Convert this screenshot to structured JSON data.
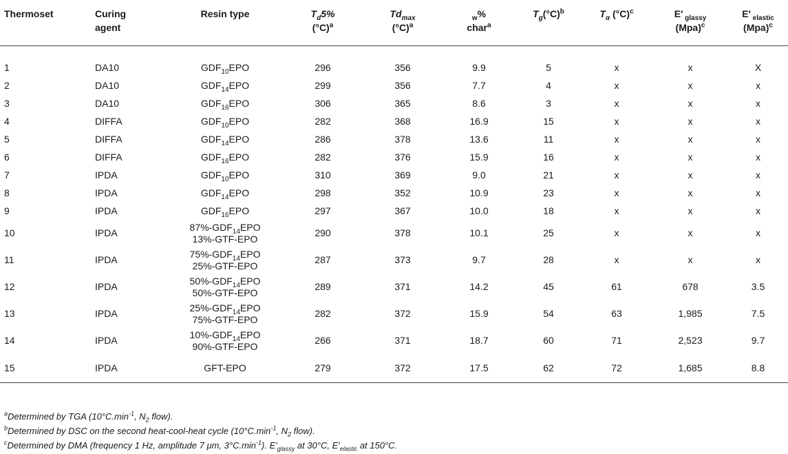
{
  "table": {
    "headers": {
      "thermoset": "Thermoset",
      "curing_agent_l1": "Curing",
      "curing_agent_l2": "agent",
      "resin_type": "Resin type",
      "td5_main": "T",
      "td5_sub": "d",
      "td5_rest": "5%",
      "td5_l2": "(°C)",
      "td5_sup": "a",
      "tdmax_main": "Td",
      "tdmax_sub": "max",
      "tdmax_l2": "(°C)",
      "tdmax_sup": "a",
      "wchar_w": "w",
      "wchar_pct": "%",
      "wchar_l2": "char",
      "wchar_sup": "a",
      "tg_main": "T",
      "tg_sub": "g",
      "tg_rest": "(°C)",
      "tg_sup": "b",
      "talpha_main": "T",
      "talpha_sub": "α",
      "talpha_rest": " (°C)",
      "talpha_sup": "c",
      "eglassy_main": "E′",
      "eglassy_sub": " glassy",
      "eglassy_l2": "(Mpa)",
      "eglassy_sup": "c",
      "eelastic_main": "E′",
      "eelastic_sub": " elastic",
      "eelastic_l2": "(Mpa)",
      "eelastic_sup": "c"
    },
    "rows": [
      {
        "id": "1",
        "agent": "DA10",
        "resin": {
          "l1_pre": "GDF",
          "l1_sub": "10",
          "l1_post": "EPO",
          "l2": ""
        },
        "td5": "296",
        "tdmax": "356",
        "wchar": "9.9",
        "tg": "5",
        "talpha": "x",
        "eglassy": "x",
        "eelastic": "X"
      },
      {
        "id": "2",
        "agent": "DA10",
        "resin": {
          "l1_pre": "GDF",
          "l1_sub": "14",
          "l1_post": "EPO",
          "l2": ""
        },
        "td5": "299",
        "tdmax": "356",
        "wchar": "7.7",
        "tg": "4",
        "talpha": "x",
        "eglassy": "x",
        "eelastic": "x"
      },
      {
        "id": "3",
        "agent": "DA10",
        "resin": {
          "l1_pre": "GDF",
          "l1_sub": "16",
          "l1_post": "EPO",
          "l2": ""
        },
        "td5": "306",
        "tdmax": "365",
        "wchar": "8.6",
        "tg": "3",
        "talpha": "x",
        "eglassy": "x",
        "eelastic": "x"
      },
      {
        "id": "4",
        "agent": "DIFFA",
        "resin": {
          "l1_pre": "GDF",
          "l1_sub": "10",
          "l1_post": "EPO",
          "l2": ""
        },
        "td5": "282",
        "tdmax": "368",
        "wchar": "16.9",
        "tg": "15",
        "talpha": "x",
        "eglassy": "x",
        "eelastic": "x"
      },
      {
        "id": "5",
        "agent": "DIFFA",
        "resin": {
          "l1_pre": "GDF",
          "l1_sub": "14",
          "l1_post": "EPO",
          "l2": ""
        },
        "td5": "286",
        "tdmax": "378",
        "wchar": "13.6",
        "tg": "11",
        "talpha": "x",
        "eglassy": "x",
        "eelastic": "x"
      },
      {
        "id": "6",
        "agent": "DIFFA",
        "resin": {
          "l1_pre": "GDF",
          "l1_sub": "16",
          "l1_post": "EPO",
          "l2": ""
        },
        "td5": "282",
        "tdmax": "376",
        "wchar": "15.9",
        "tg": "16",
        "talpha": "x",
        "eglassy": "x",
        "eelastic": "x"
      },
      {
        "id": "7",
        "agent": "IPDA",
        "resin": {
          "l1_pre": "GDF",
          "l1_sub": "10",
          "l1_post": "EPO",
          "l2": ""
        },
        "td5": "310",
        "tdmax": "369",
        "wchar": "9.0",
        "tg": "21",
        "talpha": "x",
        "eglassy": "x",
        "eelastic": "x"
      },
      {
        "id": "8",
        "agent": "IPDA",
        "resin": {
          "l1_pre": "GDF",
          "l1_sub": "14",
          "l1_post": "EPO",
          "l2": ""
        },
        "td5": "298",
        "tdmax": "352",
        "wchar": "10.9",
        "tg": "23",
        "talpha": "x",
        "eglassy": "x",
        "eelastic": "x"
      },
      {
        "id": "9",
        "agent": "IPDA",
        "resin": {
          "l1_pre": "GDF",
          "l1_sub": "16",
          "l1_post": "EPO",
          "l2": ""
        },
        "td5": "297",
        "tdmax": "367",
        "wchar": "10.0",
        "tg": "18",
        "talpha": "x",
        "eglassy": "x",
        "eelastic": "x"
      },
      {
        "id": "10",
        "agent": "IPDA",
        "resin": {
          "l1_pre": "87%-GDF",
          "l1_sub": "14",
          "l1_post": "EPO",
          "l2": "13%-GTF-EPO"
        },
        "td5": "290",
        "tdmax": "378",
        "wchar": "10.1",
        "tg": "25",
        "talpha": "x",
        "eglassy": "x",
        "eelastic": "x"
      },
      {
        "id": "11",
        "agent": "IPDA",
        "resin": {
          "l1_pre": "75%-GDF",
          "l1_sub": "14",
          "l1_post": "EPO",
          "l2": "25%-GTF-EPO"
        },
        "td5": "287",
        "tdmax": "373",
        "wchar": "9.7",
        "tg": "28",
        "talpha": "x",
        "eglassy": "x",
        "eelastic": "x"
      },
      {
        "id": "12",
        "agent": "IPDA",
        "resin": {
          "l1_pre": "50%-GDF",
          "l1_sub": "14",
          "l1_post": "EPO",
          "l2": "50%-GTF-EPO"
        },
        "td5": "289",
        "tdmax": "371",
        "wchar": "14.2",
        "tg": "45",
        "talpha": "61",
        "eglassy": "678",
        "eelastic": "3.5"
      },
      {
        "id": "13",
        "agent": "IPDA",
        "resin": {
          "l1_pre": "25%-GDF",
          "l1_sub": "14",
          "l1_post": "EPO",
          "l2": "75%-GTF-EPO"
        },
        "td5": "282",
        "tdmax": "372",
        "wchar": "15.9",
        "tg": "54",
        "talpha": "63",
        "eglassy": "1,985",
        "eelastic": "7.5"
      },
      {
        "id": "14",
        "agent": "IPDA",
        "resin": {
          "l1_pre": "10%-GDF",
          "l1_sub": "14",
          "l1_post": "EPO",
          "l2": "90%-GTF-EPO"
        },
        "td5": "266",
        "tdmax": "371",
        "wchar": "18.7",
        "tg": "60",
        "talpha": "71",
        "eglassy": "2,523",
        "eelastic": "9.7"
      },
      {
        "id": "15",
        "agent": "IPDA",
        "resin": {
          "l1_pre": "GFT-EPO",
          "l1_sub": "",
          "l1_post": "",
          "l2": ""
        },
        "td5": "279",
        "tdmax": "372",
        "wchar": "17.5",
        "tg": "62",
        "talpha": "72",
        "eglassy": "1,685",
        "eelastic": "8.8"
      }
    ]
  },
  "footnotes": {
    "a": {
      "mark": "a",
      "text_pre": "Determined by TGA (10°C.min",
      "exp": "-1",
      "text_mid": ", N",
      "sub": "2",
      "text_post": " flow)."
    },
    "b": {
      "mark": "b",
      "text_pre": "Determined by DSC on the second heat-cool-heat cycle (10°C.min",
      "exp": "-1",
      "text_mid": ", N",
      "sub": "2",
      "text_post": " flow)."
    },
    "c": {
      "mark": "c",
      "text_pre": "Determined by DMA (frequency 1 Hz, amplitude 7 μm, 3°C.min",
      "exp": "-1",
      "text_mid": "). E′",
      "sub1": "glassy",
      "text_mid2": " at 30°C, E′",
      "sub2": "elastic",
      "text_post": " at 150°C."
    }
  }
}
